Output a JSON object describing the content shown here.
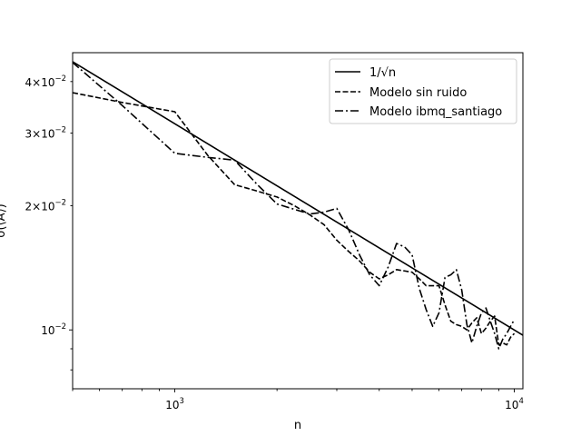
{
  "chart_data": {
    "type": "line",
    "title": "",
    "xlabel": "n",
    "ylabel": "σ(⟨A⟩)",
    "xscale": "log",
    "yscale": "log",
    "xlim": [
      500,
      10600
    ],
    "ylim": [
      0.0072,
      0.047
    ],
    "grid": false,
    "legend_position": "upper-right",
    "x_ticks": [
      {
        "value": 1000,
        "base": "10",
        "exp": "3"
      },
      {
        "value": 10000,
        "base": "10",
        "exp": "4"
      }
    ],
    "y_ticks": [
      {
        "value": 0.04,
        "mant": "4",
        "base": "10",
        "exp": "−2"
      },
      {
        "value": 0.03,
        "mant": "3",
        "base": "10",
        "exp": "−2"
      },
      {
        "value": 0.02,
        "mant": "2",
        "base": "10",
        "exp": "−2"
      },
      {
        "value": 0.01,
        "mant": "",
        "base": "10",
        "exp": "−2"
      }
    ],
    "series": [
      {
        "name": "1/√n",
        "dash": "solid",
        "x": [
          500,
          10600
        ],
        "y": [
          0.0447,
          0.00971
        ]
      },
      {
        "name": "Modelo sin ruido",
        "dash": "dashed",
        "x": [
          500,
          700,
          1000,
          1250,
          1500,
          1750,
          2000,
          2250,
          2500,
          2750,
          3000,
          3250,
          3500,
          3750,
          4000,
          4250,
          4500,
          4750,
          5000,
          5250,
          5500,
          5750,
          6000,
          6250,
          6500,
          6750,
          7000,
          7250,
          7500,
          7750,
          8000,
          8250,
          8500,
          8750,
          9000,
          9250,
          9500,
          9750,
          10000
        ],
        "y": [
          0.0376,
          0.0356,
          0.0338,
          0.0265,
          0.0225,
          0.0217,
          0.021,
          0.02,
          0.019,
          0.018,
          0.0165,
          0.0155,
          0.0147,
          0.0138,
          0.0133,
          0.0136,
          0.014,
          0.0139,
          0.0138,
          0.0133,
          0.0128,
          0.0128,
          0.0128,
          0.0115,
          0.0105,
          0.0103,
          0.0102,
          0.01,
          0.0104,
          0.0107,
          0.0098,
          0.0101,
          0.0105,
          0.0108,
          0.0092,
          0.0093,
          0.0092,
          0.0096,
          0.0098
        ]
      },
      {
        "name": "Modelo ibmq_santiago",
        "dash": "dashdot",
        "x": [
          500,
          700,
          1000,
          1250,
          1500,
          1750,
          2000,
          2250,
          2500,
          2750,
          3000,
          3250,
          3500,
          3750,
          4000,
          4250,
          4500,
          4750,
          5000,
          5250,
          5500,
          5750,
          6000,
          6250,
          6500,
          6750,
          7000,
          7250,
          7500,
          7750,
          8000,
          8250,
          8500,
          8750,
          9000,
          9250,
          9500,
          9750,
          10000
        ],
        "y": [
          0.0445,
          0.035,
          0.0268,
          0.0262,
          0.0258,
          0.0225,
          0.0202,
          0.0196,
          0.0191,
          0.0193,
          0.0197,
          0.0175,
          0.0152,
          0.0136,
          0.0128,
          0.0142,
          0.0162,
          0.0159,
          0.0152,
          0.0126,
          0.0112,
          0.0102,
          0.011,
          0.0134,
          0.0136,
          0.014,
          0.0125,
          0.0103,
          0.0093,
          0.0102,
          0.011,
          0.0113,
          0.0105,
          0.0098,
          0.009,
          0.0095,
          0.0098,
          0.0102,
          0.0106
        ]
      }
    ]
  }
}
